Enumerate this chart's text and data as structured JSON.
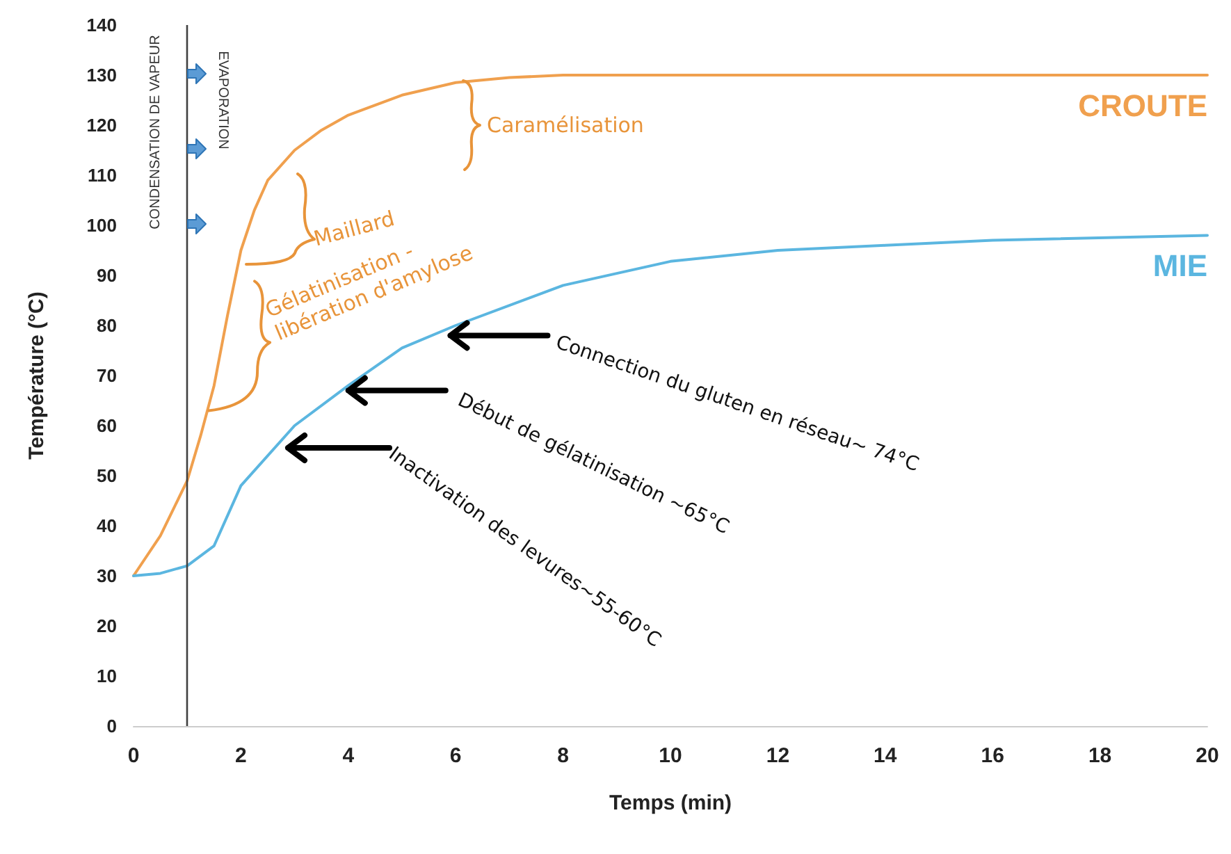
{
  "chart_data": {
    "type": "line",
    "xlabel": "Temps (min)",
    "ylabel": "Température (°C)",
    "xlim": [
      0,
      20
    ],
    "xticks": [
      0,
      2,
      4,
      6,
      8,
      10,
      12,
      14,
      16,
      18,
      20
    ],
    "ylim": [
      0,
      140
    ],
    "yticks": [
      0,
      10,
      20,
      30,
      40,
      50,
      60,
      70,
      80,
      90,
      100,
      110,
      120,
      130,
      140
    ],
    "grid": false,
    "legend": false,
    "marker": "none",
    "line_style": "solid",
    "ref_lines": [
      {
        "axis": "x",
        "value": 1,
        "color": "#404040"
      }
    ],
    "annotations": [
      "CONDENSATION DE VAPEUR",
      "EVAPORATION",
      "Caramélisation",
      "Maillard",
      {
        "text": "Gélatinisation - libération d'amylose",
        "x": 1.4,
        "y": 63
      },
      {
        "text": "Connection du gluten en réseau~ 74°C",
        "x": 5.9,
        "y": 78
      },
      {
        "text": "Début de gélatinisation ~65°C",
        "x": 4,
        "y": 67
      },
      "Inactivation des levures~55-60°C"
    ],
    "series": [
      {
        "name": "CROUTE",
        "color": "#f0a04e",
        "x": [
          0,
          0.5,
          1,
          1.25,
          1.5,
          1.75,
          2,
          2.25,
          2.5,
          3,
          3.5,
          4,
          5,
          6,
          7,
          8,
          12,
          20
        ],
        "values": [
          30,
          38,
          49,
          58,
          68,
          82,
          95,
          103,
          109,
          115,
          119,
          122,
          126,
          128.5,
          129.5,
          130,
          130,
          130
        ]
      },
      {
        "name": "MIE",
        "color": "#5bb6e0",
        "x": [
          0,
          0.5,
          1,
          1.5,
          2,
          3,
          4,
          5,
          6,
          8,
          10,
          12,
          14,
          16,
          20
        ],
        "values": [
          30,
          30.5,
          32,
          36,
          48,
          60,
          68,
          75.5,
          80,
          88,
          92.8,
          95,
          96,
          97,
          98
        ]
      }
    ]
  }
}
